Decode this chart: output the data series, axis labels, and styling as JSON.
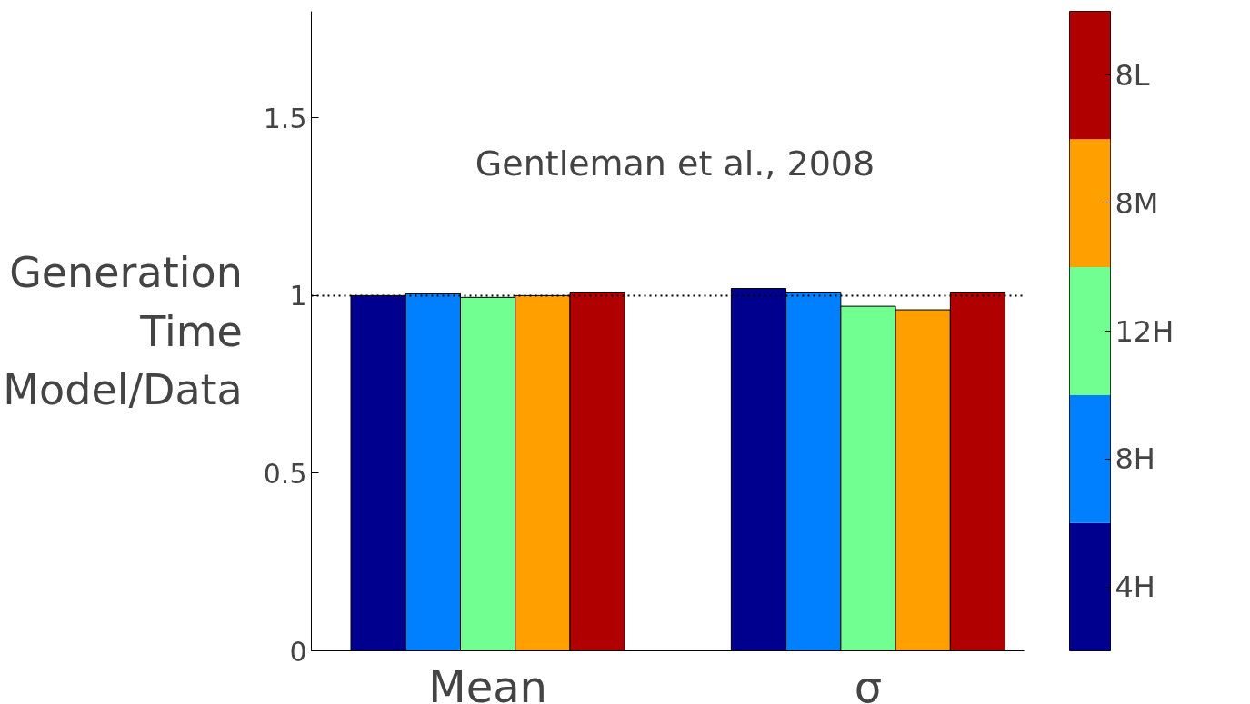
{
  "chart_data": {
    "type": "bar",
    "ylabel": "Generation Time Model/Data",
    "categories": [
      "Mean",
      "σ"
    ],
    "series": [
      {
        "name": "4H",
        "color": "#00008f",
        "values": [
          1.0,
          1.02
        ]
      },
      {
        "name": "8H",
        "color": "#0080ff",
        "values": [
          1.005,
          1.01
        ]
      },
      {
        "name": "12H",
        "color": "#70ff90",
        "values": [
          0.995,
          0.97
        ]
      },
      {
        "name": "8M",
        "color": "#ffa000",
        "values": [
          1.0,
          0.96
        ]
      },
      {
        "name": "8L",
        "color": "#b00000",
        "values": [
          1.01,
          1.01
        ]
      }
    ],
    "ylim": [
      0,
      1.8
    ],
    "yticks": [
      0,
      0.5,
      1,
      1.5
    ],
    "ref_lines": [
      {
        "axis": "y",
        "value": 1,
        "color": "#000000",
        "line_style": "dotted"
      }
    ],
    "annotations": [
      "Gentleman et al., 2008"
    ],
    "legend": "right",
    "grid": false
  }
}
